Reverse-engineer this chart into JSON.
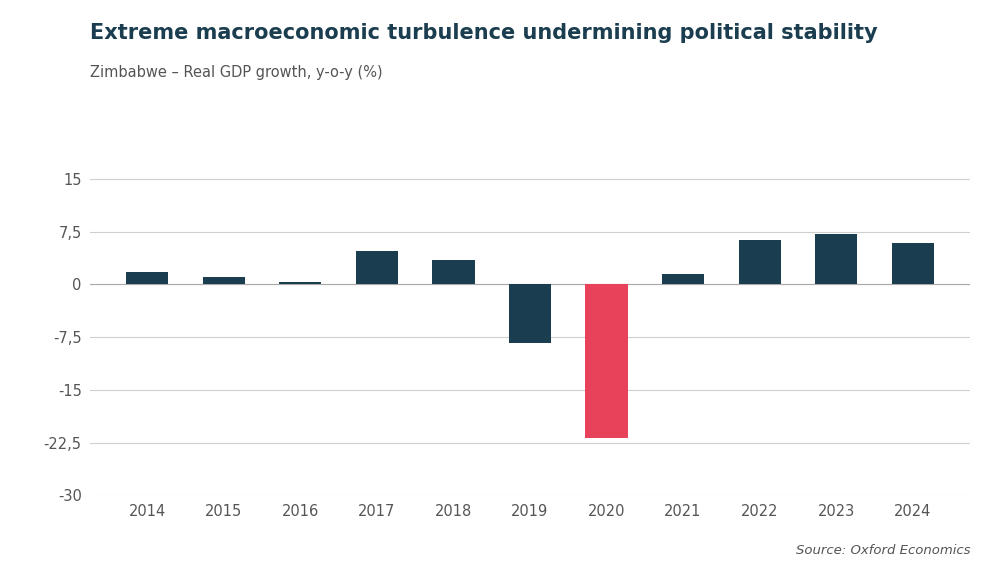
{
  "title": "Extreme macroeconomic turbulence undermining political stability",
  "subtitle": "Zimbabwe – Real GDP growth, y-o-y (%)",
  "source": "Source: Oxford Economics",
  "years": [
    2014,
    2015,
    2016,
    2017,
    2018,
    2019,
    2020,
    2021,
    2022,
    2023,
    2024
  ],
  "values": [
    1.8,
    1.0,
    0.4,
    4.7,
    3.5,
    -8.3,
    -21.8,
    1.5,
    6.3,
    7.1,
    5.9
  ],
  "bar_colors": [
    "#1a3d4f",
    "#1a3d4f",
    "#1a3d4f",
    "#1a3d4f",
    "#1a3d4f",
    "#1a3d4f",
    "#e8415a",
    "#1a3d4f",
    "#1a3d4f",
    "#1a3d4f",
    "#1a3d4f"
  ],
  "ylim": [
    -30,
    18
  ],
  "yticks": [
    -30,
    -22.5,
    -15,
    -7.5,
    0,
    7.5,
    15
  ],
  "ytick_labels": [
    "-30",
    "-22,5",
    "-15",
    "-7,5",
    "0",
    "7,5",
    "15"
  ],
  "background_color": "#ffffff",
  "grid_color": "#d0d0d0",
  "title_fontsize": 15,
  "subtitle_fontsize": 10.5,
  "source_fontsize": 9.5,
  "axis_fontsize": 10.5,
  "title_color": "#1a3d4f",
  "subtitle_color": "#555555",
  "axis_label_color": "#555555",
  "bar_width": 0.55
}
